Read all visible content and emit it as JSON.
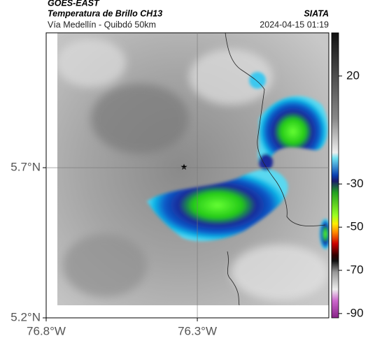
{
  "header": {
    "satellite": "GOES-EAST",
    "product": "Temperatura de Brillo CH13",
    "source": "SIATA",
    "region": "Vía Medellín - Quibdó 50km",
    "datetime": "2024-04-15 01:19"
  },
  "map": {
    "xlim": [
      -76.8,
      -75.865
    ],
    "ylim": [
      5.2,
      6.149
    ],
    "xticks": [
      {
        "value": -76.8,
        "label": "76.8°W"
      },
      {
        "value": -76.3,
        "label": "76.3°W"
      }
    ],
    "yticks": [
      {
        "value": 5.7,
        "label": "5.7°N"
      },
      {
        "value": 5.2,
        "label": "5.2°N"
      }
    ]
  },
  "colorbar": {
    "lim": [
      -92,
      40
    ],
    "ticks": [
      20,
      -30,
      -50,
      -70,
      -90
    ]
  }
}
